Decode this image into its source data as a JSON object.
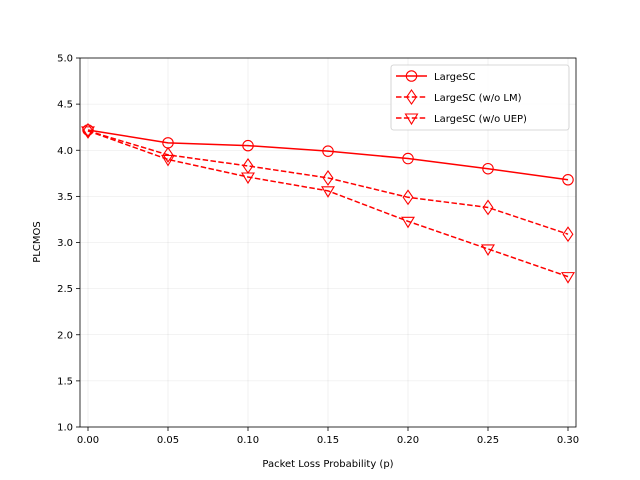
{
  "chart_data": {
    "type": "line",
    "title": "",
    "xlabel": "Packet Loss Probability (p)",
    "ylabel": "PLCMOS",
    "x": [
      0.0,
      0.05,
      0.1,
      0.15,
      0.2,
      0.25,
      0.3
    ],
    "x_tick_labels": [
      "0.00",
      "0.05",
      "0.10",
      "0.15",
      "0.20",
      "0.25",
      "0.30"
    ],
    "y_tick_labels": [
      "1.0",
      "1.5",
      "2.0",
      "2.5",
      "3.0",
      "3.5",
      "4.0",
      "4.5",
      "5.0"
    ],
    "xlim": [
      -0.005,
      0.305
    ],
    "ylim": [
      1.0,
      5.0
    ],
    "grid": true,
    "legend_position": "top-right",
    "series": [
      {
        "name": "LargeSC",
        "values": [
          4.22,
          4.08,
          4.05,
          3.99,
          3.91,
          3.8,
          3.68
        ],
        "color": "#ff0000",
        "dash": "solid",
        "marker": "circle"
      },
      {
        "name": "LargeSC (w/o LM)",
        "values": [
          4.21,
          3.95,
          3.83,
          3.7,
          3.49,
          3.38,
          3.09
        ],
        "color": "#ff0000",
        "dash": "dashed",
        "marker": "diamond"
      },
      {
        "name": "LargeSC (w/o UEP)",
        "values": [
          4.21,
          3.9,
          3.71,
          3.56,
          3.23,
          2.93,
          2.63
        ],
        "color": "#ff0000",
        "dash": "dashed",
        "marker": "triangle-down"
      }
    ]
  }
}
